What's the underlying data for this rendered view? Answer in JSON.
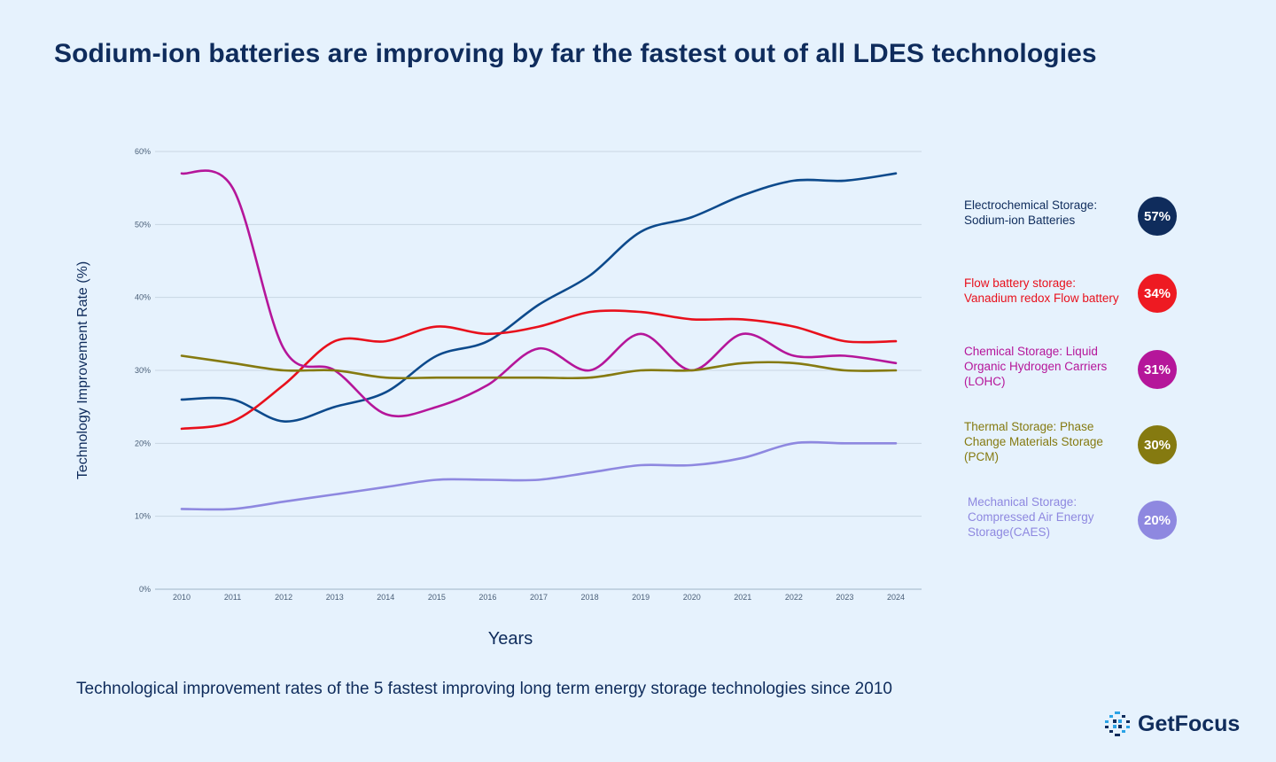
{
  "title": "Sodium-ion batteries are improving by far the fastest out of all LDES technologies",
  "caption": "Technological improvement rates of the 5 fastest improving long term energy storage technologies since 2010",
  "brand": {
    "name": "GetFocus",
    "logo_icon": "focus-grid-icon",
    "color": "#0f2c5c",
    "accent": "#2aa3e6"
  },
  "chart_data": {
    "type": "line",
    "xlabel": "Years",
    "ylabel": "Technology Improvement Rate (%)",
    "ylim": [
      0,
      60
    ],
    "yticks": [
      0,
      10,
      20,
      30,
      40,
      50,
      60
    ],
    "ytick_labels": [
      "0%",
      "10%",
      "20%",
      "30%",
      "40%",
      "50%",
      "60%"
    ],
    "grid": true,
    "legend_position": "right",
    "x": [
      "2010",
      "2011",
      "2012",
      "2013",
      "2014",
      "2015",
      "2016",
      "2017",
      "2018",
      "2019",
      "2020",
      "2021",
      "2022",
      "2023",
      "2024"
    ],
    "series": [
      {
        "label": "Electrochemical Storage: Sodium-ion Batteries",
        "color": "#0d4a8c",
        "badge_color": "#0f2c5c",
        "badge_text": "57%",
        "values": [
          26,
          26,
          23,
          25,
          27,
          32,
          34,
          39,
          43,
          49,
          51,
          54,
          56,
          56,
          57
        ]
      },
      {
        "label": "Flow battery storage: Vanadium redox Flow battery",
        "color": "#e8101c",
        "badge_color": "#ee1a22",
        "badge_text": "34%",
        "values": [
          22,
          23,
          28,
          34,
          34,
          36,
          35,
          36,
          38,
          38,
          37,
          37,
          36,
          34,
          34
        ]
      },
      {
        "label": "Chemical Storage: Liquid Organic Hydrogen Carriers (LOHC)",
        "color": "#b5169a",
        "badge_color": "#b5169a",
        "badge_text": "31%",
        "values": [
          57,
          55,
          33,
          30,
          24,
          25,
          28,
          33,
          30,
          35,
          30,
          35,
          32,
          32,
          31
        ]
      },
      {
        "label": "Thermal Storage: Phase Change Materials Storage (PCM)",
        "color": "#857a10",
        "badge_color": "#857a10",
        "badge_text": "30%",
        "values": [
          32,
          31,
          30,
          30,
          29,
          29,
          29,
          29,
          29,
          30,
          30,
          31,
          31,
          30,
          30
        ]
      },
      {
        "label": "Mechanical Storage: Compressed Air Energy Storage(CAES)",
        "color": "#8e88e0",
        "badge_color": "#8e88e0",
        "badge_text": "20%",
        "values": [
          11,
          11,
          12,
          13,
          14,
          15,
          15,
          15,
          16,
          17,
          17,
          18,
          20,
          20,
          20
        ]
      }
    ]
  }
}
